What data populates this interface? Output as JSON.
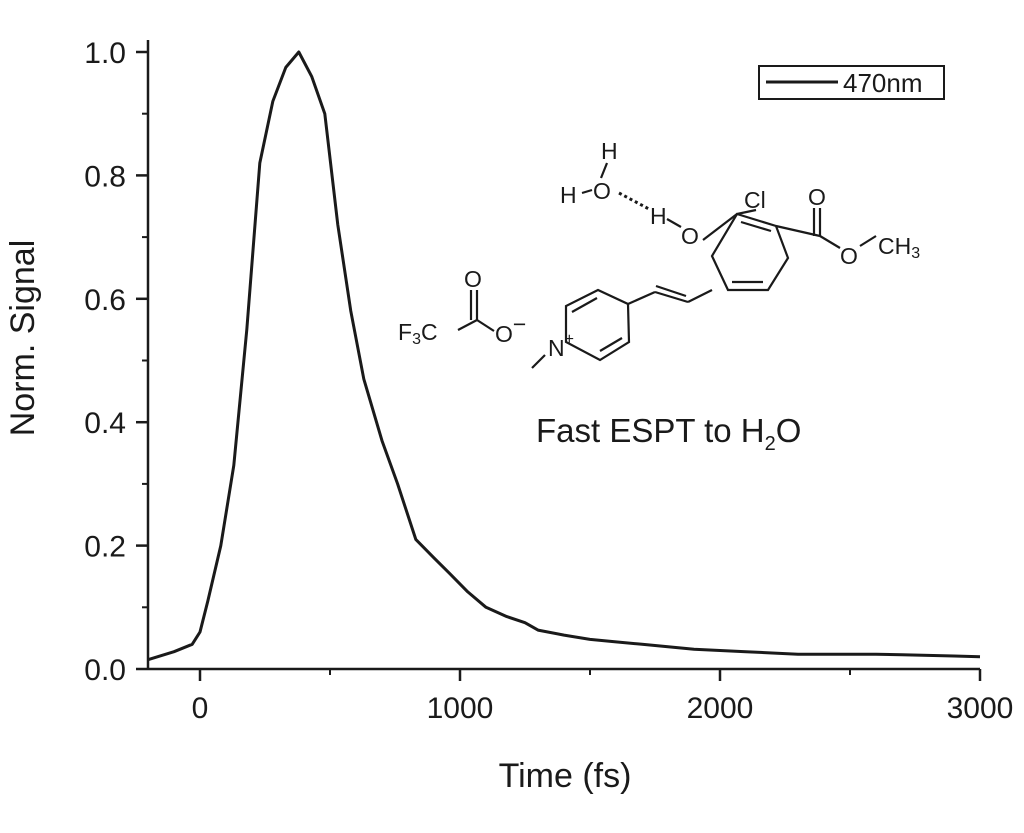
{
  "chart_data": {
    "type": "line",
    "xlabel": "Time (fs)",
    "ylabel": "Norm. Signal",
    "xlim": [
      -200,
      3000
    ],
    "ylim": [
      0.0,
      1.0
    ],
    "x_ticks": [
      0,
      1000,
      2000,
      3000
    ],
    "x_tick_labels": [
      "0",
      "1000",
      "2000",
      "3000"
    ],
    "y_ticks": [
      0.0,
      0.2,
      0.4,
      0.6,
      0.8,
      1.0
    ],
    "y_tick_labels": [
      "0.0",
      "0.2",
      "0.4",
      "0.6",
      "0.8",
      "1.0"
    ],
    "grid": false,
    "legend_position": "top-right",
    "series": [
      {
        "name": "470nm",
        "color": "#1a1a1a",
        "x": [
          -200,
          -100,
          -30,
          0,
          30,
          80,
          130,
          180,
          230,
          280,
          330,
          380,
          430,
          480,
          530,
          580,
          630,
          700,
          760,
          830,
          900,
          960,
          1030,
          1100,
          1180,
          1250,
          1300,
          1400,
          1500,
          1600,
          1700,
          1800,
          1900,
          2000,
          2100,
          2200,
          2300,
          2400,
          2500,
          2600,
          2700,
          2800,
          2900,
          3000
        ],
        "y": [
          0.015,
          0.028,
          0.04,
          0.06,
          0.11,
          0.2,
          0.33,
          0.55,
          0.82,
          0.92,
          0.975,
          1.0,
          0.96,
          0.9,
          0.72,
          0.58,
          0.47,
          0.37,
          0.3,
          0.21,
          0.18,
          0.155,
          0.125,
          0.1,
          0.085,
          0.075,
          0.063,
          0.055,
          0.048,
          0.044,
          0.04,
          0.036,
          0.032,
          0.03,
          0.028,
          0.026,
          0.024,
          0.024,
          0.024,
          0.024,
          0.023,
          0.022,
          0.021,
          0.02
        ]
      }
    ],
    "annotation": {
      "label_main": "Fast ESPT to H",
      "label_sub": "2",
      "label_end": "O"
    },
    "molecule_labels": {
      "h_top": "H",
      "h_left": "H",
      "o_water": "O",
      "h_bond": "H",
      "o_phenol": "O",
      "cl": "Cl",
      "o_carbonyl": "O",
      "o_ester": "O",
      "methyl": "CH",
      "methyl_sub": "3",
      "o_tfa_carbonyl": "O",
      "f3c": "F",
      "f3c_sub": "3",
      "f3c_c": "C",
      "o_tfa_minus": "O",
      "minus": "−",
      "n_plus": "N",
      "plus": "+"
    }
  }
}
